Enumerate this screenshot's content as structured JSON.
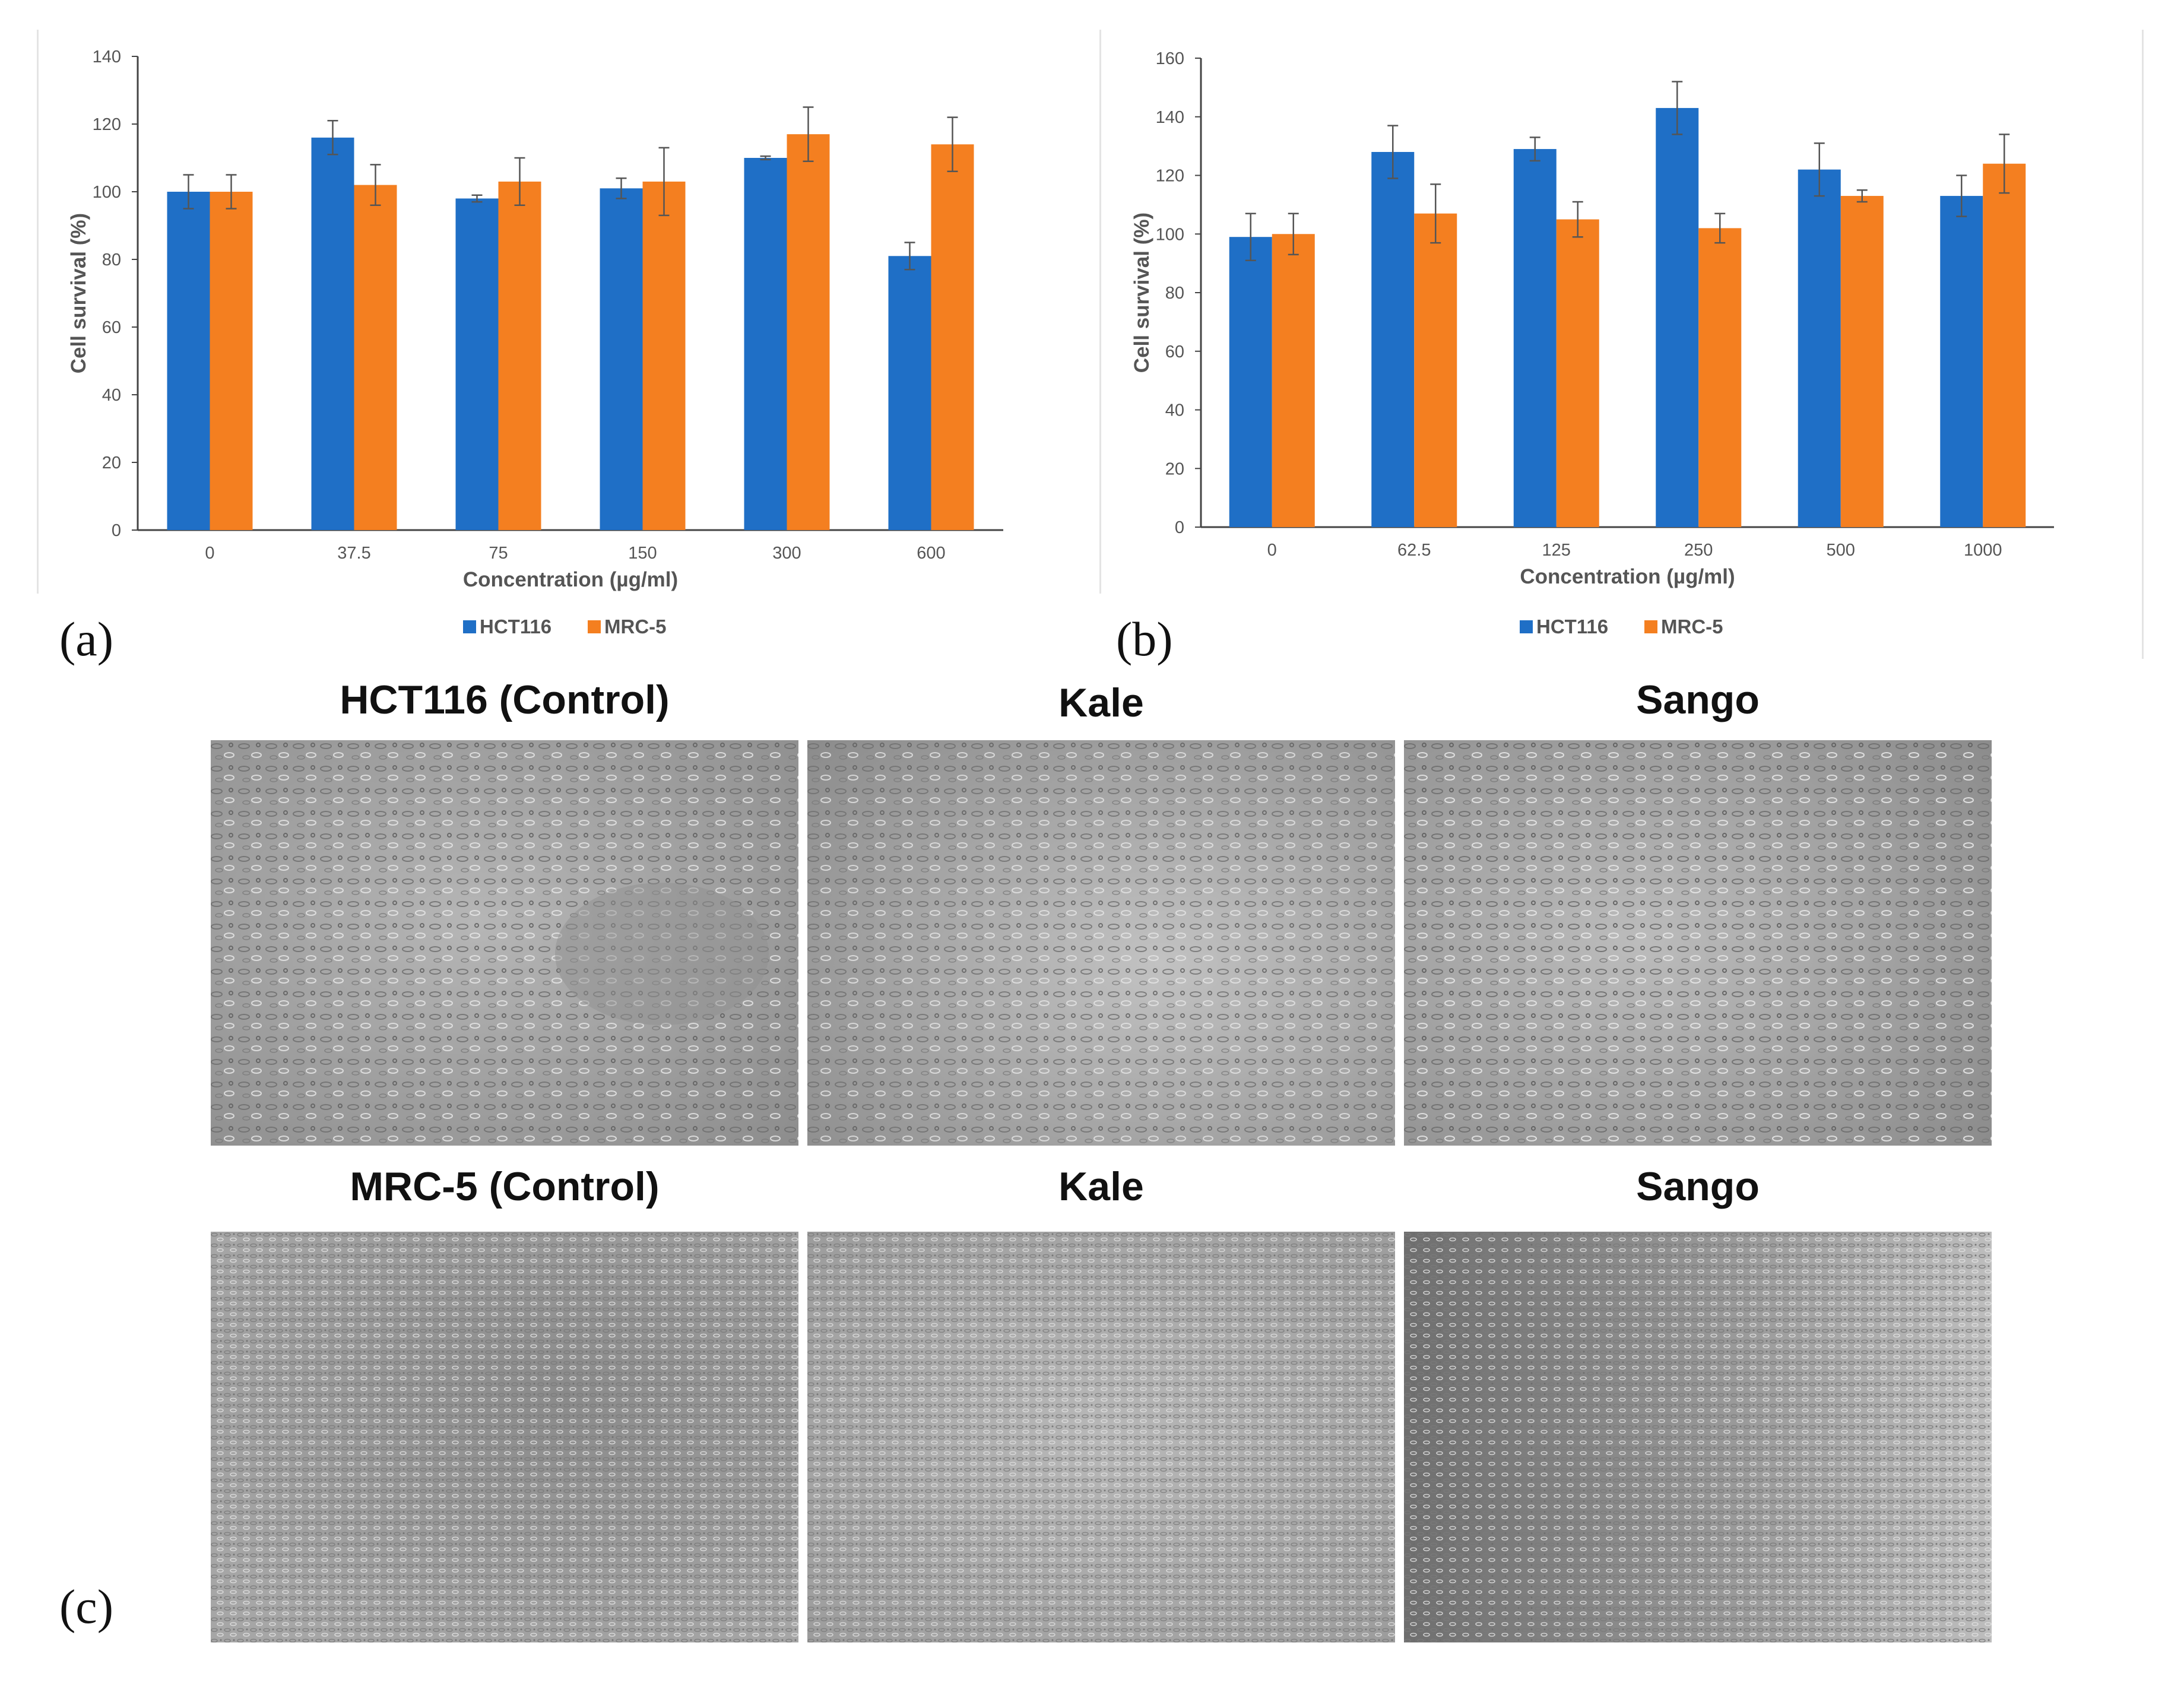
{
  "panel_labels": {
    "a": "(a)",
    "b": "(b)",
    "c": "(c)"
  },
  "colors": {
    "hct116": "#1f6fc6",
    "mrc5": "#f47f20",
    "axis": "#444444",
    "error": "#555555"
  },
  "chart_data": [
    {
      "id": "a",
      "type": "bar",
      "categories": [
        "0",
        "37.5",
        "75",
        "150",
        "300",
        "600"
      ],
      "series": [
        {
          "name": "HCT116",
          "values": [
            100,
            116,
            98,
            101,
            110,
            81
          ],
          "errors": [
            5,
            5,
            1,
            3,
            0.5,
            4
          ]
        },
        {
          "name": "MRC-5",
          "values": [
            100,
            102,
            103,
            103,
            117,
            114
          ],
          "errors": [
            5,
            6,
            7,
            10,
            8,
            8
          ]
        }
      ],
      "title": "",
      "xlabel": "Concentration (µg/ml)",
      "ylabel": "Cell survival (%)",
      "ylim": [
        0,
        140
      ],
      "yticks": [
        0,
        20,
        40,
        60,
        80,
        100,
        120,
        140
      ],
      "grid": false,
      "legend_position": "bottom-center",
      "legend_entries": [
        "HCT116",
        "MRC-5"
      ]
    },
    {
      "id": "b",
      "type": "bar",
      "categories": [
        "0",
        "62.5",
        "125",
        "250",
        "500",
        "1000"
      ],
      "series": [
        {
          "name": "HCT116",
          "values": [
            99,
            128,
            129,
            143,
            122,
            113
          ],
          "errors": [
            8,
            9,
            4,
            9,
            9,
            7
          ]
        },
        {
          "name": "MRC-5",
          "values": [
            100,
            107,
            105,
            102,
            113,
            124
          ],
          "errors": [
            7,
            10,
            6,
            5,
            2,
            10
          ]
        }
      ],
      "title": "",
      "xlabel": "Concentration (µg/ml)",
      "ylabel": "Cell survival (%)",
      "ylim": [
        0,
        160
      ],
      "yticks": [
        0,
        20,
        40,
        60,
        80,
        100,
        120,
        140,
        160
      ],
      "grid": false,
      "legend_position": "bottom-center",
      "legend_entries": [
        "HCT116",
        "MRC-5"
      ]
    }
  ],
  "micrographs": {
    "row1": [
      {
        "title": "HCT116 (Control)",
        "texture": "sparse"
      },
      {
        "title": "Kale",
        "texture": "sparse"
      },
      {
        "title": "Sango",
        "texture": "sparse"
      }
    ],
    "row2": [
      {
        "title": "MRC-5 (Control)",
        "texture": "dense"
      },
      {
        "title": "Kale",
        "texture": "dense"
      },
      {
        "title": "Sango",
        "texture": "dense"
      }
    ]
  }
}
